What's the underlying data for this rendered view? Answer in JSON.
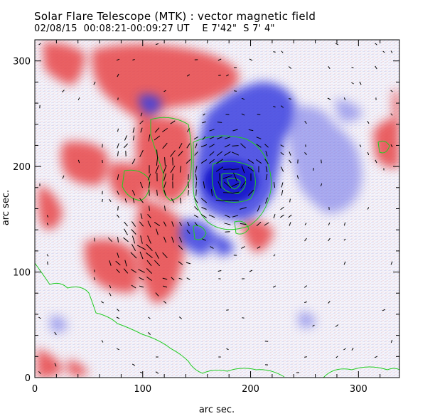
{
  "header": {
    "title": "Solar Flare Telescope (MTK) : vector magnetic field",
    "subtitle": "02/08/15  00:08:21-00:09:27 UT    E 7'42\"  S 7' 4\""
  },
  "chart_data": {
    "type": "heatmap",
    "xlabel": "arc sec.",
    "ylabel": "arc sec.",
    "xlim": [
      0,
      338
    ],
    "ylim": [
      0,
      320
    ],
    "xticks": [
      0,
      100,
      200,
      300
    ],
    "yticks": [
      0,
      100,
      200,
      300
    ],
    "grid": false,
    "colors": {
      "positive": "#e8474a",
      "negative": "#3b3fe0",
      "contour": "#22cc22",
      "vectors": "#000000",
      "background_noise": "#d8d8f0"
    }
  }
}
